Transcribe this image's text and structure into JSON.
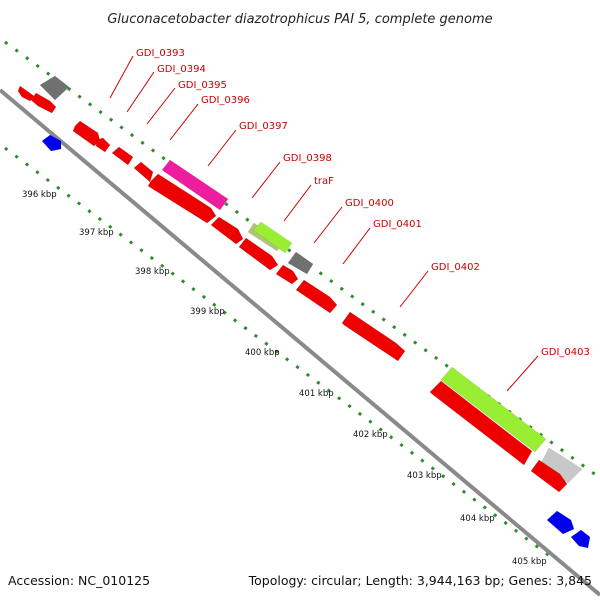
{
  "title": "Gluconacetobacter diazotrophicus PAI 5, complete genome",
  "footer": {
    "accession": "Accession: NC_010125",
    "topology": "Topology: circular; Length: 3,944,163 bp; Genes: 3,845"
  },
  "colors": {
    "backbone": "#8a8a8a",
    "dots": "#2e8b2e",
    "label": "#cc0000",
    "cds": "#ee0000",
    "cds_minus": "#0000ee",
    "gray": "#707070",
    "pink": "#ee1c9e",
    "lime": "#99ee33",
    "olive": "#b5c27a",
    "light_gray": "#c8c8c8"
  },
  "gene_labels": [
    "GDI_0393",
    "GDI_0394",
    "GDI_0395",
    "GDI_0396",
    "GDI_0397",
    "GDI_0398",
    "traF",
    "GDI_0400",
    "GDI_0401",
    "GDI_0402",
    "GDI_0403"
  ],
  "ticks": [
    "396 kbp",
    "397 kbp",
    "398 kbp",
    "399 kbp",
    "400 kbp",
    "401 kbp",
    "402 kbp",
    "403 kbp",
    "404 kbp",
    "405 kbp"
  ]
}
